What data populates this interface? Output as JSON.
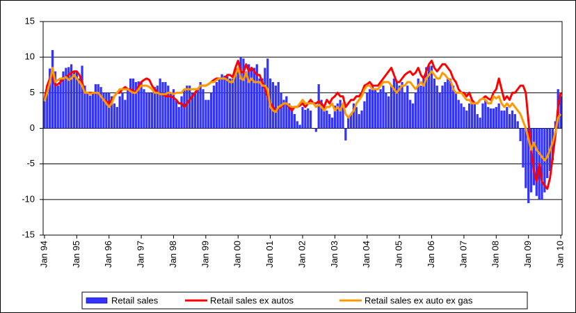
{
  "chart_data": {
    "type": "bar_line",
    "categories": [
      "Jan 94",
      null,
      null,
      null,
      null,
      null,
      null,
      null,
      null,
      null,
      null,
      null,
      "Jan 95",
      null,
      null,
      null,
      null,
      null,
      null,
      null,
      null,
      null,
      null,
      null,
      "Jan 96",
      null,
      null,
      null,
      null,
      null,
      null,
      null,
      null,
      null,
      null,
      null,
      "Jan 97",
      null,
      null,
      null,
      null,
      null,
      null,
      null,
      null,
      null,
      null,
      null,
      "Jan 98",
      null,
      null,
      null,
      null,
      null,
      null,
      null,
      null,
      null,
      null,
      null,
      "Jan 99",
      null,
      null,
      null,
      null,
      null,
      null,
      null,
      null,
      null,
      null,
      null,
      "Jan 00",
      null,
      null,
      null,
      null,
      null,
      null,
      null,
      null,
      null,
      null,
      null,
      "Jan 01",
      null,
      null,
      null,
      null,
      null,
      null,
      null,
      null,
      null,
      null,
      null,
      "Jan 02",
      null,
      null,
      null,
      null,
      null,
      null,
      null,
      null,
      null,
      null,
      null,
      "Jan 03",
      null,
      null,
      null,
      null,
      null,
      null,
      null,
      null,
      null,
      null,
      null,
      "Jan 04",
      null,
      null,
      null,
      null,
      null,
      null,
      null,
      null,
      null,
      null,
      null,
      "Jan 05",
      null,
      null,
      null,
      null,
      null,
      null,
      null,
      null,
      null,
      null,
      null,
      "Jan 06",
      null,
      null,
      null,
      null,
      null,
      null,
      null,
      null,
      null,
      null,
      null,
      "Jan 07",
      null,
      null,
      null,
      null,
      null,
      null,
      null,
      null,
      null,
      null,
      null,
      "Jan 08",
      null,
      null,
      null,
      null,
      null,
      null,
      null,
      null,
      null,
      null,
      null,
      "Jan 09",
      null,
      null,
      null,
      null,
      null,
      null,
      null,
      null,
      null,
      null,
      null,
      "Jan 10"
    ],
    "series": [
      {
        "name": "Retail sales",
        "type": "bar",
        "color": "#3333ff",
        "values": [
          4,
          6,
          8.4,
          11,
          8,
          6,
          7,
          8,
          8.5,
          8.6,
          9,
          8,
          8,
          7,
          8.8,
          6,
          5,
          4.6,
          5,
          6.2,
          6.2,
          5.8,
          5,
          5,
          5,
          4.5,
          3.5,
          3,
          4.5,
          5,
          4,
          5.5,
          7,
          7,
          6.5,
          6.6,
          6.6,
          5.5,
          5,
          5,
          5,
          5.8,
          6,
          7,
          6.5,
          6.5,
          6,
          5,
          5.5,
          4,
          3,
          4.5,
          5.5,
          6,
          6,
          5,
          5,
          5.5,
          6.5,
          5.5,
          4,
          4,
          5,
          6,
          6.5,
          7,
          7.6,
          7.4,
          7.3,
          7,
          7,
          8.5,
          8.5,
          10,
          9.8,
          8,
          9,
          8.6,
          8.5,
          9,
          7,
          7,
          8.5,
          9.8,
          7,
          6.5,
          6,
          6.5,
          5,
          4,
          4.5,
          3.5,
          3,
          2,
          1,
          0.5,
          3,
          2.6,
          2.8,
          2.5,
          0,
          -0.5,
          6.2,
          4,
          3,
          2.5,
          2,
          1.5,
          3.2,
          3.5,
          4,
          3,
          -1.7,
          1.5,
          2,
          3.5,
          3,
          2,
          2.5,
          3.8,
          5,
          5.5,
          6,
          5.5,
          5,
          5.5,
          6,
          5,
          4.5,
          6,
          7,
          6.5,
          6,
          6.5,
          5,
          6,
          4,
          3.5,
          5,
          7,
          6,
          7,
          8.6,
          8.8,
          8.8,
          7,
          6,
          5,
          6,
          6.5,
          7,
          7,
          6,
          5,
          4,
          3.5,
          3,
          2.5,
          3.5,
          4,
          3.5,
          2,
          1.5,
          3.5,
          4,
          3,
          2.8,
          2.8,
          3,
          3.5,
          2.5,
          2.5,
          3,
          2,
          2.5,
          2,
          1,
          -1.8,
          -5.5,
          -8.4,
          -10.5,
          -9,
          -8,
          -9.5,
          -10,
          -10,
          -9,
          -7,
          -6,
          -4.5,
          1,
          5.5,
          4.5
        ]
      },
      {
        "name": "Retail sales ex autos",
        "type": "line",
        "color": "#ff0000",
        "values": [
          4,
          6,
          7,
          7.5,
          6,
          6.2,
          6.5,
          7,
          7.2,
          7.5,
          7.8,
          8,
          8,
          7.5,
          6.5,
          5,
          5,
          5,
          5,
          5,
          5,
          4.5,
          4,
          3.8,
          3.5,
          4,
          4.5,
          5,
          5,
          5.5,
          5.8,
          5.5,
          5.5,
          5.3,
          5,
          6,
          6.5,
          6.8,
          7,
          6.8,
          6,
          5.5,
          5,
          4.8,
          4.8,
          4.5,
          4.5,
          4.5,
          4.3,
          4,
          3.5,
          3.5,
          3,
          3.5,
          4,
          4.5,
          5,
          5.5,
          6,
          6,
          6,
          6.2,
          6.5,
          6.8,
          7,
          7,
          7,
          7,
          7.5,
          7.5,
          7.2,
          8.5,
          9.5,
          8,
          7.8,
          9,
          8,
          8.5,
          8,
          7.5,
          7.5,
          6.5,
          5.5,
          4.5,
          3.5,
          3,
          2.5,
          2.8,
          3,
          3.5,
          3.5,
          3,
          2.5,
          3,
          3,
          3.2,
          3.5,
          3,
          3.5,
          4,
          3.5,
          3.5,
          3.8,
          3.5,
          3,
          4,
          3.5,
          4.2,
          4.5,
          5,
          4.5,
          4.5,
          3,
          3.5,
          4,
          4,
          4.5,
          4.5,
          5,
          6,
          6.2,
          6.5,
          6,
          6,
          6,
          6.5,
          7,
          7.5,
          8,
          8.5,
          7.5,
          6.5,
          6.5,
          7,
          7.5,
          7.8,
          8,
          7.5,
          7.8,
          8.5,
          7.5,
          7,
          8,
          9,
          9.5,
          8.5,
          8,
          8.5,
          9,
          9,
          8.5,
          8,
          7,
          6.5,
          5.5,
          5,
          5,
          4.5,
          5,
          4,
          3.5,
          3.5,
          4,
          4.2,
          4.5,
          4.2,
          4,
          5,
          5.5,
          7,
          5.5,
          4,
          4.5,
          4,
          5,
          5,
          5.5,
          6,
          6,
          5,
          1,
          -3,
          -6,
          -7.5,
          -5,
          -7.5,
          -8,
          -8.5,
          -7,
          -4,
          -1,
          3,
          5
        ]
      },
      {
        "name": "Retail sales ex auto ex gas",
        "type": "line",
        "color": "#ff9900",
        "values": [
          3.8,
          5,
          6.5,
          8.5,
          6.5,
          6.8,
          7,
          7,
          7.2,
          6.8,
          7,
          7.5,
          7,
          6.5,
          6,
          5,
          5,
          4.8,
          5,
          5,
          5,
          4.5,
          4,
          3.5,
          3,
          3.5,
          4.5,
          5,
          5.5,
          5.5,
          5.5,
          5.5,
          5.2,
          5,
          5,
          5.5,
          6,
          6,
          6,
          5.8,
          5.5,
          5,
          5,
          4.8,
          4.8,
          4.8,
          5,
          5,
          4.8,
          5,
          5,
          5,
          5.5,
          5.5,
          5.5,
          5.5,
          5.5,
          5.5,
          6,
          6,
          6,
          6.2,
          6.5,
          6.5,
          6.8,
          7,
          7,
          7,
          6.8,
          6.5,
          6.5,
          7.5,
          8.5,
          7,
          6.8,
          7.8,
          6.5,
          7,
          6.5,
          6.5,
          6.5,
          6,
          6,
          5.5,
          3,
          2.5,
          2.3,
          3,
          3.2,
          3.5,
          3.5,
          3.2,
          3,
          3,
          3,
          3.5,
          4,
          3.5,
          3.5,
          3.5,
          3.5,
          3,
          3.3,
          3,
          2.5,
          3,
          3,
          3.5,
          2.5,
          3,
          2.5,
          3.5,
          2,
          1.5,
          2,
          2.5,
          3.5,
          4,
          4.5,
          5.5,
          6,
          6,
          5.5,
          5.5,
          5.5,
          6,
          6.5,
          6.5,
          6.5,
          6,
          5.5,
          5,
          5.5,
          6,
          6,
          6.5,
          6.5,
          6,
          5.5,
          6,
          6.5,
          6,
          7,
          7.5,
          8,
          7.5,
          7,
          7,
          7.8,
          7.5,
          7,
          6.8,
          5.5,
          5,
          5,
          5,
          4.5,
          4,
          4,
          3.5,
          3.5,
          3.5,
          4,
          4.2,
          4,
          3.5,
          3.5,
          4.5,
          4.2,
          4.5,
          3.5,
          3,
          3.5,
          3,
          3.5,
          3,
          2.5,
          2,
          1,
          0,
          -1.5,
          -3,
          -2,
          -3,
          -3.5,
          -4,
          -4.5,
          -4,
          -3,
          -2,
          -0.5,
          1.5,
          2
        ]
      }
    ],
    "ylim": [
      -15,
      15
    ],
    "yticks": [
      -15,
      -10,
      -5,
      0,
      5,
      10,
      15
    ],
    "grid": true,
    "legend": "bottom"
  }
}
